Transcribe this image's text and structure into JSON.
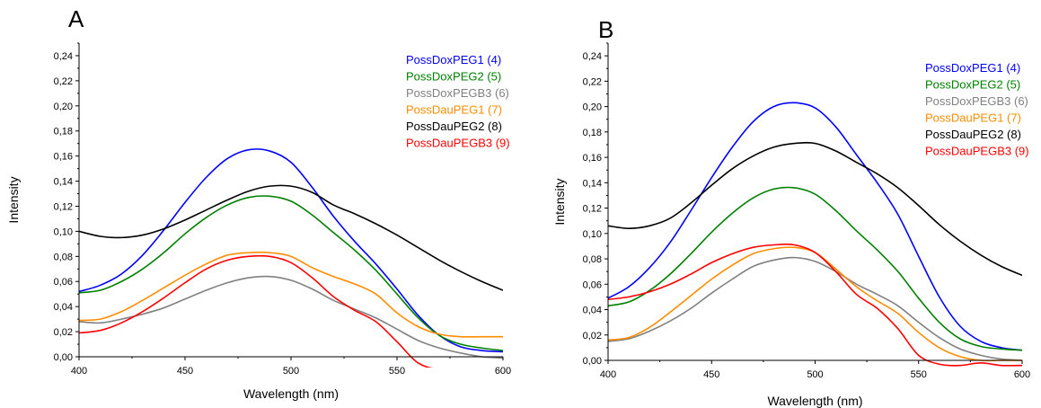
{
  "panels": [
    {
      "label": "A"
    },
    {
      "label": "B"
    }
  ],
  "chart_data": [
    {
      "type": "line",
      "panel": "A",
      "xlabel": "Wavelength (nm)",
      "ylabel": "Intensity",
      "xlim": [
        400,
        600
      ],
      "ylim": [
        0.0,
        0.25
      ],
      "xticks": [
        "400",
        "450",
        "500",
        "550",
        "600"
      ],
      "yticks": [
        "0,00",
        "0,02",
        "0,04",
        "0,06",
        "0,08",
        "0,10",
        "0,12",
        "0,14",
        "0,16",
        "0,18",
        "0,20",
        "0,22",
        "0,24"
      ],
      "legend_position": "top-right",
      "series": [
        {
          "name": "PossDoxPEG1 (4)",
          "color": "#0000ff",
          "x": [
            400,
            410,
            420,
            430,
            440,
            450,
            460,
            470,
            480,
            490,
            500,
            510,
            520,
            530,
            540,
            550,
            560,
            570,
            580,
            590,
            600
          ],
          "y": [
            0.052,
            0.057,
            0.066,
            0.081,
            0.101,
            0.123,
            0.143,
            0.158,
            0.165,
            0.164,
            0.155,
            0.135,
            0.112,
            0.092,
            0.074,
            0.054,
            0.033,
            0.017,
            0.008,
            0.005,
            0.004
          ]
        },
        {
          "name": "PossDoxPEG2 (5)",
          "color": "#008000",
          "x": [
            400,
            410,
            420,
            430,
            440,
            450,
            460,
            470,
            480,
            490,
            500,
            510,
            520,
            530,
            540,
            550,
            560,
            570,
            580,
            590,
            600
          ],
          "y": [
            0.051,
            0.053,
            0.06,
            0.07,
            0.083,
            0.098,
            0.111,
            0.121,
            0.127,
            0.128,
            0.124,
            0.113,
            0.099,
            0.085,
            0.069,
            0.05,
            0.031,
            0.017,
            0.01,
            0.007,
            0.005
          ]
        },
        {
          "name": "PossDoxPEGB3 (6)",
          "color": "#808080",
          "x": [
            400,
            410,
            420,
            430,
            440,
            450,
            460,
            470,
            480,
            490,
            500,
            510,
            520,
            530,
            540,
            550,
            560,
            570,
            580,
            590,
            600
          ],
          "y": [
            0.028,
            0.027,
            0.03,
            0.034,
            0.039,
            0.046,
            0.053,
            0.059,
            0.063,
            0.064,
            0.061,
            0.054,
            0.045,
            0.038,
            0.031,
            0.022,
            0.013,
            0.007,
            0.003,
            0.0,
            -0.001
          ]
        },
        {
          "name": "PossDauPEG1 (7)",
          "color": "#ff8c00",
          "x": [
            400,
            410,
            420,
            430,
            440,
            450,
            460,
            470,
            480,
            490,
            500,
            510,
            520,
            530,
            540,
            550,
            560,
            570,
            580,
            590,
            600
          ],
          "y": [
            0.029,
            0.03,
            0.036,
            0.045,
            0.055,
            0.065,
            0.074,
            0.081,
            0.083,
            0.083,
            0.08,
            0.071,
            0.064,
            0.058,
            0.05,
            0.035,
            0.024,
            0.018,
            0.016,
            0.016,
            0.016
          ]
        },
        {
          "name": "PossDauPEG2 (8)",
          "color": "#000000",
          "x": [
            400,
            410,
            420,
            430,
            440,
            450,
            460,
            470,
            480,
            490,
            500,
            510,
            520,
            530,
            540,
            550,
            560,
            570,
            580,
            590,
            600
          ],
          "y": [
            0.1,
            0.096,
            0.095,
            0.097,
            0.102,
            0.109,
            0.117,
            0.125,
            0.132,
            0.136,
            0.136,
            0.131,
            0.121,
            0.114,
            0.106,
            0.097,
            0.087,
            0.077,
            0.068,
            0.06,
            0.053
          ]
        },
        {
          "name": "PossDauPEGB3 (9)",
          "color": "#ff0000",
          "x": [
            400,
            410,
            420,
            430,
            440,
            450,
            460,
            470,
            480,
            490,
            500,
            510,
            520,
            530,
            540,
            550,
            560,
            570,
            580,
            590,
            600
          ],
          "y": [
            0.019,
            0.021,
            0.027,
            0.036,
            0.047,
            0.059,
            0.07,
            0.077,
            0.08,
            0.08,
            0.075,
            0.063,
            0.048,
            0.037,
            0.028,
            0.012,
            -0.005,
            -0.01,
            -0.011,
            -0.012,
            -0.012
          ]
        }
      ]
    },
    {
      "type": "line",
      "panel": "B",
      "xlabel": "Wavelength (nm)",
      "ylabel": "Intensity",
      "xlim": [
        400,
        600
      ],
      "ylim": [
        0.0,
        0.25
      ],
      "xticks": [
        "400",
        "450",
        "500",
        "550",
        "600"
      ],
      "yticks": [
        "0,00",
        "0,02",
        "0,04",
        "0,06",
        "0,08",
        "0,10",
        "0,12",
        "0,14",
        "0,16",
        "0,18",
        "0,20",
        "0,22",
        "0,24"
      ],
      "legend_position": "top-right",
      "series": [
        {
          "name": "PossDoxPEG1 (4)",
          "color": "#0000ff",
          "x": [
            400,
            410,
            420,
            430,
            440,
            450,
            460,
            470,
            480,
            490,
            500,
            510,
            520,
            530,
            540,
            550,
            560,
            570,
            580,
            590,
            600
          ],
          "y": [
            0.049,
            0.058,
            0.073,
            0.093,
            0.118,
            0.144,
            0.168,
            0.188,
            0.2,
            0.203,
            0.199,
            0.184,
            0.162,
            0.14,
            0.115,
            0.082,
            0.05,
            0.027,
            0.015,
            0.01,
            0.008
          ]
        },
        {
          "name": "PossDoxPEG2 (5)",
          "color": "#008000",
          "x": [
            400,
            410,
            420,
            430,
            440,
            450,
            460,
            470,
            480,
            490,
            500,
            510,
            520,
            530,
            540,
            550,
            560,
            570,
            580,
            590,
            600
          ],
          "y": [
            0.043,
            0.046,
            0.055,
            0.068,
            0.084,
            0.101,
            0.116,
            0.128,
            0.135,
            0.136,
            0.131,
            0.118,
            0.102,
            0.087,
            0.07,
            0.049,
            0.03,
            0.017,
            0.011,
            0.009,
            0.008
          ]
        },
        {
          "name": "PossDoxPEGB3 (6)",
          "color": "#808080",
          "x": [
            400,
            410,
            420,
            430,
            440,
            450,
            460,
            470,
            480,
            490,
            500,
            510,
            520,
            530,
            540,
            550,
            560,
            570,
            580,
            590,
            600
          ],
          "y": [
            0.015,
            0.017,
            0.023,
            0.031,
            0.041,
            0.053,
            0.064,
            0.074,
            0.079,
            0.081,
            0.078,
            0.07,
            0.06,
            0.052,
            0.043,
            0.03,
            0.018,
            0.009,
            0.004,
            0.001,
            0.0
          ]
        },
        {
          "name": "PossDauPEG1 (7)",
          "color": "#ff8c00",
          "x": [
            400,
            410,
            420,
            430,
            440,
            450,
            460,
            470,
            480,
            490,
            500,
            510,
            520,
            530,
            540,
            550,
            560,
            570,
            580,
            590,
            600
          ],
          "y": [
            0.016,
            0.018,
            0.026,
            0.038,
            0.051,
            0.064,
            0.075,
            0.084,
            0.088,
            0.089,
            0.085,
            0.072,
            0.058,
            0.047,
            0.037,
            0.022,
            0.01,
            0.003,
            0.0,
            0.0,
            0.0
          ]
        },
        {
          "name": "PossDauPEG2 (8)",
          "color": "#000000",
          "x": [
            400,
            410,
            420,
            430,
            440,
            450,
            460,
            470,
            480,
            490,
            500,
            510,
            520,
            530,
            540,
            550,
            560,
            570,
            580,
            590,
            600
          ],
          "y": [
            0.106,
            0.104,
            0.106,
            0.112,
            0.124,
            0.138,
            0.151,
            0.161,
            0.168,
            0.171,
            0.171,
            0.165,
            0.156,
            0.147,
            0.136,
            0.122,
            0.107,
            0.094,
            0.083,
            0.074,
            0.067
          ]
        },
        {
          "name": "PossDauPEGB3 (9)",
          "color": "#ff0000",
          "x": [
            400,
            410,
            420,
            430,
            440,
            450,
            460,
            470,
            480,
            490,
            500,
            510,
            520,
            530,
            540,
            550,
            560,
            570,
            580,
            590,
            600
          ],
          "y": [
            0.048,
            0.05,
            0.054,
            0.06,
            0.068,
            0.077,
            0.084,
            0.089,
            0.091,
            0.091,
            0.085,
            0.07,
            0.052,
            0.041,
            0.025,
            0.004,
            -0.003,
            -0.004,
            -0.002,
            -0.004,
            -0.004
          ]
        }
      ]
    }
  ]
}
